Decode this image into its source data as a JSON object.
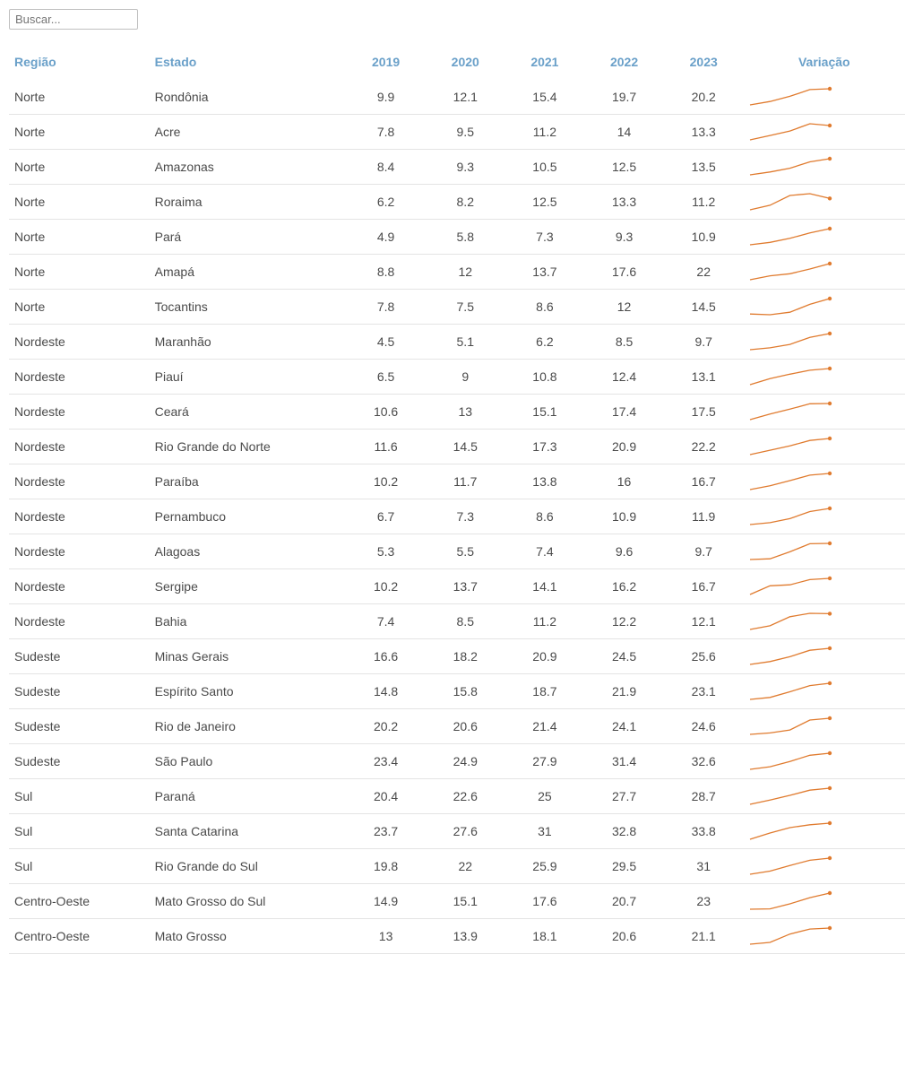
{
  "search": {
    "placeholder": "Buscar..."
  },
  "headers": {
    "regiao": "Região",
    "estado": "Estado",
    "y2019": "2019",
    "y2020": "2020",
    "y2021": "2021",
    "y2022": "2022",
    "y2023": "2023",
    "variacao": "Variação"
  },
  "style": {
    "header_color": "#6aa0c9",
    "text_color": "#4a4a4a",
    "row_border": "#e4e4e4",
    "spark_line_color": "#e07b2f",
    "spark_dot_color": "#e07b2f",
    "spark_line_width": 1.3,
    "spark_dot_radius": 2.2,
    "spark_width": 95,
    "spark_height": 24,
    "font_size": 14
  },
  "rows": [
    {
      "regiao": "Norte",
      "estado": "Rondônia",
      "v": [
        9.9,
        12.1,
        15.4,
        19.7,
        20.2
      ]
    },
    {
      "regiao": "Norte",
      "estado": "Acre",
      "v": [
        7.8,
        9.5,
        11.2,
        14,
        13.3
      ]
    },
    {
      "regiao": "Norte",
      "estado": "Amazonas",
      "v": [
        8.4,
        9.3,
        10.5,
        12.5,
        13.5
      ]
    },
    {
      "regiao": "Norte",
      "estado": "Roraima",
      "v": [
        6.2,
        8.2,
        12.5,
        13.3,
        11.2
      ]
    },
    {
      "regiao": "Norte",
      "estado": "Pará",
      "v": [
        4.9,
        5.8,
        7.3,
        9.3,
        10.9
      ]
    },
    {
      "regiao": "Norte",
      "estado": "Amapá",
      "v": [
        8.8,
        12,
        13.7,
        17.6,
        22
      ]
    },
    {
      "regiao": "Norte",
      "estado": "Tocantins",
      "v": [
        7.8,
        7.5,
        8.6,
        12,
        14.5
      ]
    },
    {
      "regiao": "Nordeste",
      "estado": "Maranhão",
      "v": [
        4.5,
        5.1,
        6.2,
        8.5,
        9.7
      ]
    },
    {
      "regiao": "Nordeste",
      "estado": "Piauí",
      "v": [
        6.5,
        9,
        10.8,
        12.4,
        13.1
      ]
    },
    {
      "regiao": "Nordeste",
      "estado": "Ceará",
      "v": [
        10.6,
        13,
        15.1,
        17.4,
        17.5
      ]
    },
    {
      "regiao": "Nordeste",
      "estado": "Rio Grande do Norte",
      "v": [
        11.6,
        14.5,
        17.3,
        20.9,
        22.2
      ]
    },
    {
      "regiao": "Nordeste",
      "estado": "Paraíba",
      "v": [
        10.2,
        11.7,
        13.8,
        16,
        16.7
      ]
    },
    {
      "regiao": "Nordeste",
      "estado": "Pernambuco",
      "v": [
        6.7,
        7.3,
        8.6,
        10.9,
        11.9
      ]
    },
    {
      "regiao": "Nordeste",
      "estado": "Alagoas",
      "v": [
        5.3,
        5.5,
        7.4,
        9.6,
        9.7
      ]
    },
    {
      "regiao": "Nordeste",
      "estado": "Sergipe",
      "v": [
        10.2,
        13.7,
        14.1,
        16.2,
        16.7
      ]
    },
    {
      "regiao": "Nordeste",
      "estado": "Bahia",
      "v": [
        7.4,
        8.5,
        11.2,
        12.2,
        12.1
      ]
    },
    {
      "regiao": "Sudeste",
      "estado": "Minas Gerais",
      "v": [
        16.6,
        18.2,
        20.9,
        24.5,
        25.6
      ]
    },
    {
      "regiao": "Sudeste",
      "estado": "Espírito Santo",
      "v": [
        14.8,
        15.8,
        18.7,
        21.9,
        23.1
      ]
    },
    {
      "regiao": "Sudeste",
      "estado": "Rio de Janeiro",
      "v": [
        20.2,
        20.6,
        21.4,
        24.1,
        24.6
      ]
    },
    {
      "regiao": "Sudeste",
      "estado": "São Paulo",
      "v": [
        23.4,
        24.9,
        27.9,
        31.4,
        32.6
      ]
    },
    {
      "regiao": "Sul",
      "estado": "Paraná",
      "v": [
        20.4,
        22.6,
        25,
        27.7,
        28.7
      ]
    },
    {
      "regiao": "Sul",
      "estado": "Santa Catarina",
      "v": [
        23.7,
        27.6,
        31,
        32.8,
        33.8
      ]
    },
    {
      "regiao": "Sul",
      "estado": "Rio Grande do Sul",
      "v": [
        19.8,
        22,
        25.9,
        29.5,
        31
      ]
    },
    {
      "regiao": "Centro-Oeste",
      "estado": "Mato Grosso do Sul",
      "v": [
        14.9,
        15.1,
        17.6,
        20.7,
        23
      ]
    },
    {
      "regiao": "Centro-Oeste",
      "estado": "Mato Grosso",
      "v": [
        13,
        13.9,
        18.1,
        20.6,
        21.1
      ]
    }
  ]
}
